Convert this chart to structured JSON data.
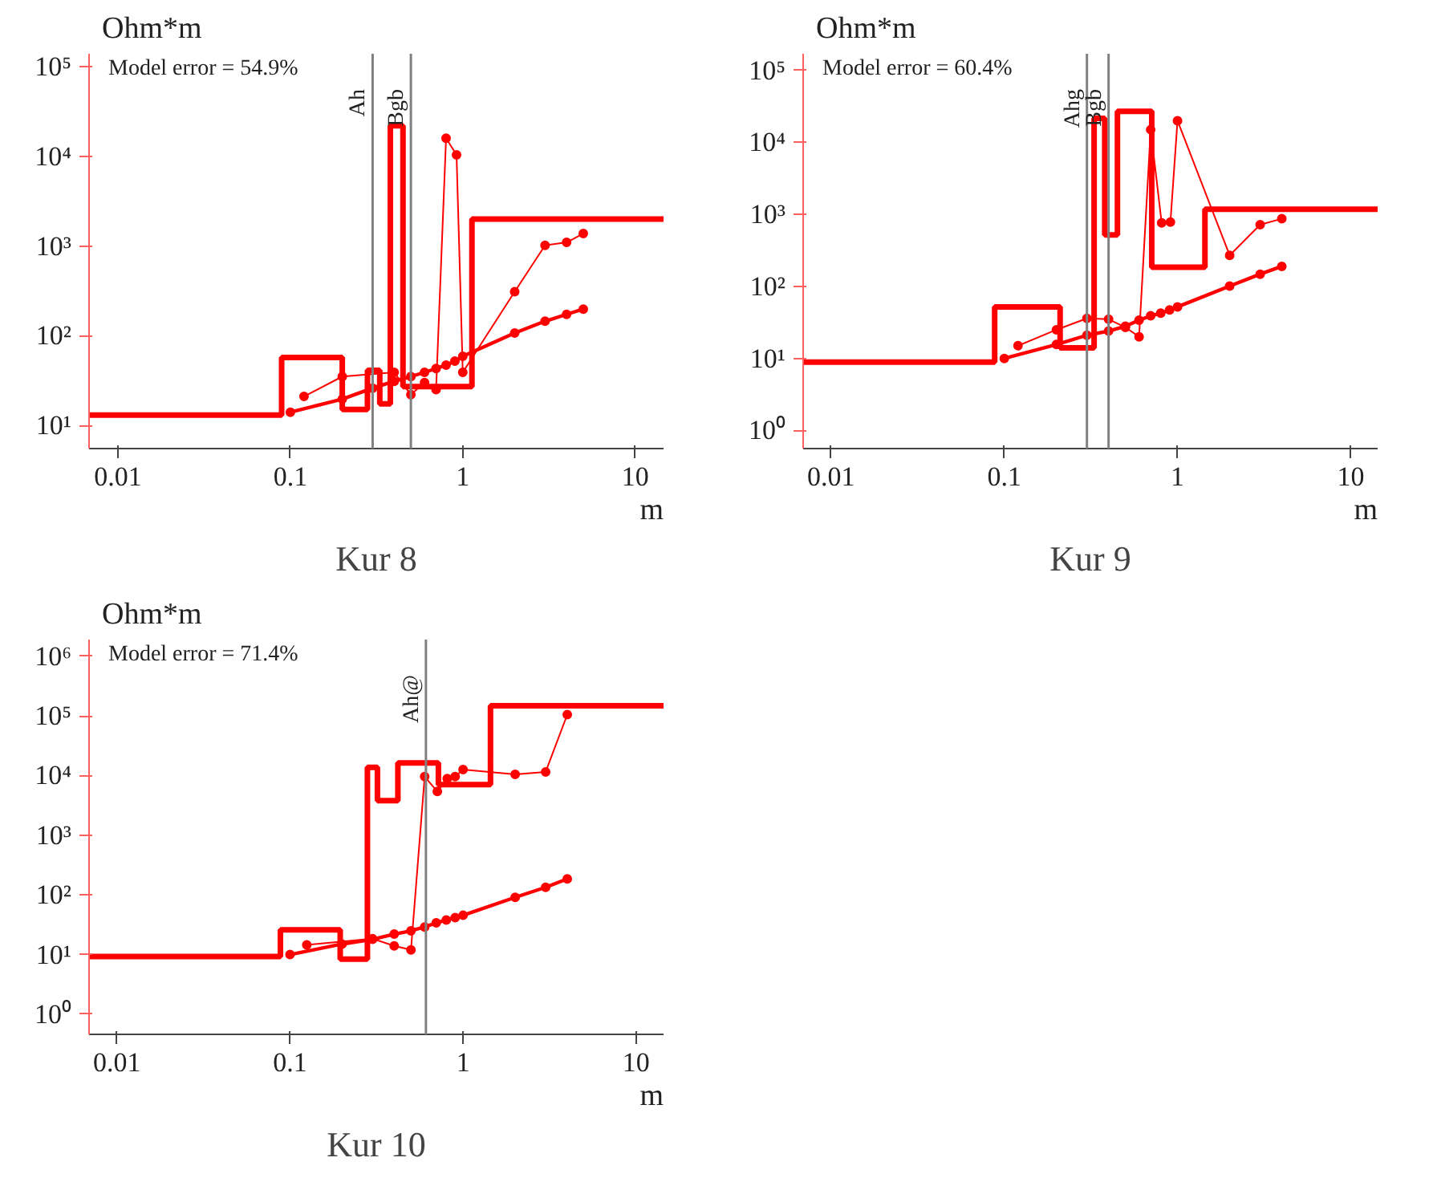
{
  "chart_data": [
    {
      "type": "line",
      "title": "Kur 8",
      "xlabel": "m",
      "ylabel": "Ohm*m",
      "annotations": [
        "Model error = 54.9%"
      ],
      "log": "xy",
      "grid": false,
      "xlim": [
        0.0068,
        14.6
      ],
      "ylim": [
        5.5,
        140000
      ],
      "xticks": [
        0.01,
        0.1,
        1,
        10
      ],
      "yticks": [
        {
          "value": 10,
          "label": "10¹"
        },
        {
          "value": 100,
          "label": "10²"
        },
        {
          "value": 1000,
          "label": "10³"
        },
        {
          "value": 10000,
          "label": "10⁴"
        },
        {
          "value": 100000,
          "label": "10⁵"
        }
      ],
      "ref_lines": [
        {
          "axis": "x",
          "value": 0.3,
          "label": "Ah",
          "color": "#808080"
        },
        {
          "axis": "x",
          "value": 0.5,
          "label": "Bgb",
          "color": "#808080"
        }
      ],
      "series": [
        {
          "type": "step",
          "color": "#ff0000",
          "marker": "none",
          "x": [
            0.0068,
            0.089,
            0.2,
            0.28,
            0.33,
            0.38,
            0.45,
            1.13,
            14.6
          ],
          "values": [
            13,
            57,
            15,
            41,
            17.4,
            22000,
            27,
            2000,
            2000
          ]
        },
        {
          "color": "#ff0000",
          "marker": "circle",
          "x": [
            0.12,
            0.2,
            0.4,
            0.5,
            0.6,
            0.7,
            0.8,
            0.92,
            1.0,
            2.0,
            3.0,
            4.0,
            5.0
          ],
          "values": [
            21,
            35,
            39,
            22,
            30,
            25,
            16000,
            10400,
            39,
            310,
            1020,
            1100,
            1380
          ]
        },
        {
          "color": "#ff0000",
          "marker": "circle",
          "x": [
            0.1,
            0.2,
            0.3,
            0.4,
            0.5,
            0.6,
            0.7,
            0.8,
            0.9,
            1.0,
            2.0,
            3.0,
            4.0,
            5.0
          ],
          "values": [
            14,
            19.6,
            26,
            31,
            35,
            39,
            43,
            47,
            52,
            59,
            107,
            145,
            173,
            198
          ]
        }
      ]
    },
    {
      "type": "line",
      "title": "Kur 9",
      "xlabel": "m",
      "ylabel": "Ohm*m",
      "annotations": [
        "Model error = 60.4%"
      ],
      "log": "xy",
      "grid": false,
      "xlim": [
        0.0069,
        14.3
      ],
      "ylim": [
        0.56,
        170000
      ],
      "xticks": [
        0.01,
        0.1,
        1,
        10
      ],
      "yticks": [
        {
          "value": 1,
          "label": "10⁰"
        },
        {
          "value": 10,
          "label": "10¹"
        },
        {
          "value": 100,
          "label": "10²"
        },
        {
          "value": 1000,
          "label": "10³"
        },
        {
          "value": 10000,
          "label": "10⁴"
        },
        {
          "value": 100000,
          "label": "10⁵"
        }
      ],
      "ref_lines": [
        {
          "axis": "x",
          "value": 0.3,
          "label": "Ahg",
          "color": "#808080"
        },
        {
          "axis": "x",
          "value": 0.4,
          "label": "Bgb",
          "color": "#808080"
        }
      ],
      "series": [
        {
          "type": "step",
          "color": "#ff0000",
          "marker": "none",
          "x": [
            0.0069,
            0.088,
            0.21,
            0.33,
            0.38,
            0.45,
            0.71,
            1.44,
            14.3
          ],
          "values": [
            8.9,
            52,
            14,
            21600,
            520,
            27000,
            185,
            1180,
            1180
          ]
        },
        {
          "color": "#ff0000",
          "marker": "circle",
          "x": [
            0.12,
            0.2,
            0.3,
            0.4,
            0.5,
            0.6,
            0.7,
            0.81,
            0.91,
            1.0,
            2.0,
            3.0,
            4.0
          ],
          "values": [
            15,
            25,
            36,
            35,
            27,
            20,
            15000,
            760,
            780,
            20000,
            270,
            720,
            870
          ]
        },
        {
          "color": "#ff0000",
          "marker": "circle",
          "x": [
            0.1,
            0.2,
            0.3,
            0.4,
            0.5,
            0.6,
            0.7,
            0.8,
            0.9,
            1.0,
            2.0,
            3.0,
            4.0
          ],
          "values": [
            10,
            15.6,
            21,
            24,
            28,
            34,
            39,
            42.5,
            47,
            52,
            101,
            148,
            190
          ]
        }
      ]
    },
    {
      "type": "line",
      "title": "Kur 10",
      "xlabel": "m",
      "ylabel": "Ohm*m",
      "annotations": [
        "Model error = 71.4%"
      ],
      "log": "xy",
      "grid": false,
      "xlim": [
        0.0069,
        14.4
      ],
      "ylim": [
        0.46,
        1900000
      ],
      "xticks": [
        0.01,
        0.1,
        1,
        10
      ],
      "yticks": [
        {
          "value": 1,
          "label": "10⁰"
        },
        {
          "value": 10,
          "label": "10¹"
        },
        {
          "value": 100,
          "label": "10²"
        },
        {
          "value": 1000,
          "label": "10³"
        },
        {
          "value": 10000,
          "label": "10⁴"
        },
        {
          "value": 100000,
          "label": "10⁵"
        },
        {
          "value": 1000000,
          "label": "10⁶"
        }
      ],
      "ref_lines": [
        {
          "axis": "x",
          "value": 0.61,
          "label": "Ah@",
          "color": "#808080"
        }
      ],
      "series": [
        {
          "type": "step",
          "color": "#ff0000",
          "marker": "none",
          "x": [
            0.0069,
            0.088,
            0.195,
            0.28,
            0.32,
            0.42,
            0.72,
            1.44,
            14.4
          ],
          "values": [
            9.3,
            26,
            8.4,
            13700,
            3800,
            16300,
            7050,
            148000,
            148000
          ]
        },
        {
          "color": "#ff0000",
          "marker": "circle",
          "x": [
            0.125,
            0.3,
            0.4,
            0.5,
            0.6,
            0.71,
            0.81,
            0.9,
            1.0,
            2.0,
            3.0,
            4.0
          ],
          "values": [
            14.5,
            18.5,
            14,
            12,
            9600,
            5400,
            8900,
            9600,
            12600,
            10500,
            11500,
            105000
          ]
        },
        {
          "color": "#ff0000",
          "marker": "circle",
          "x": [
            0.1,
            0.2,
            0.3,
            0.4,
            0.5,
            0.6,
            0.7,
            0.8,
            0.9,
            1.0,
            2.0,
            3.0,
            4.0
          ],
          "values": [
            10,
            15,
            18,
            22,
            25,
            29,
            34,
            38,
            41.5,
            45.5,
            91,
            134,
            185
          ]
        }
      ]
    }
  ]
}
